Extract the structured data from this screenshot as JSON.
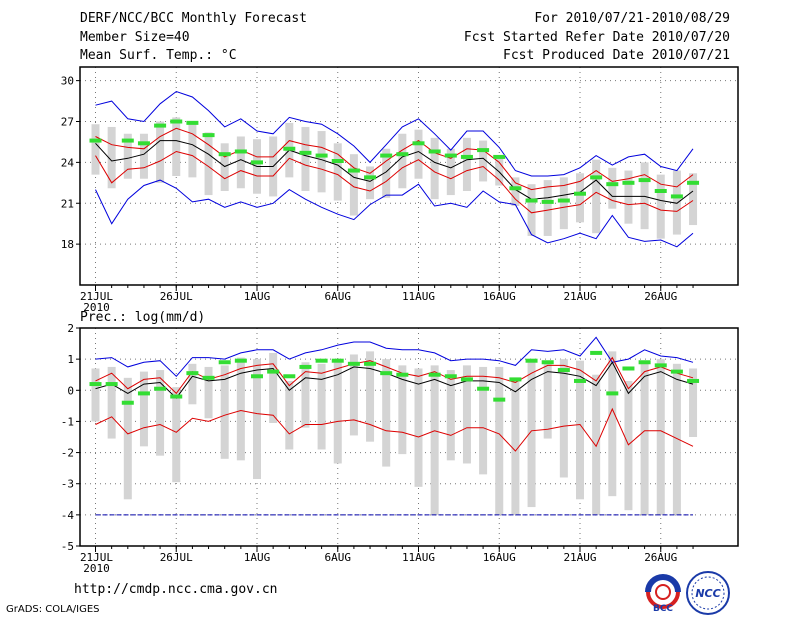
{
  "header": {
    "title": "DERF/NCC/BCC Monthly Forecast",
    "member_size": "Member Size=40",
    "variable": "Mean Surf. Temp.: °C",
    "period": "For 2010/07/21-2010/08/29",
    "fcst_started": "Fcst Started Refer Date 2010/07/20",
    "fcst_produced": "Fcst Produced Date 2010/07/21"
  },
  "footer": {
    "url": "http://cmdp.ncc.cma.gov.cn",
    "credit": "GrADS: COLA/IGES",
    "logo_left_text": "BCC",
    "logo_right_text": "NCC"
  },
  "colors": {
    "upper": "#0000dd",
    "lower": "#0000dd",
    "ens_high": "#dd0000",
    "mean": "#000000",
    "obs": "#33dd33",
    "bar": "#d4d4d4",
    "floor": "#0000aa"
  },
  "chart_data": [
    {
      "type": "line",
      "title": "Mean Surf. Temp.: °C",
      "x_tick_labels": [
        "21JUL",
        "26JUL",
        "1AUG",
        "6AUG",
        "11AUG",
        "16AUG",
        "21AUG",
        "26AUG"
      ],
      "x_tick_days": [
        1,
        6,
        11,
        16,
        21,
        26,
        31,
        36
      ],
      "x_sublabel": "2010",
      "ylim": [
        15,
        31
      ],
      "yticks": [
        18,
        21,
        24,
        27,
        30
      ],
      "series": [
        {
          "name": "upper envelope",
          "role": "upper",
          "values": [
            28.2,
            28.5,
            27.2,
            27.0,
            28.3,
            29.2,
            28.8,
            27.8,
            26.6,
            27.2,
            26.3,
            26.1,
            27.3,
            27.0,
            26.8,
            26.1,
            25.2,
            24.0,
            25.3,
            26.6,
            27.2,
            26.1,
            24.9,
            26.3,
            26.3,
            25.1,
            23.4,
            23.0,
            23.0,
            23.1,
            23.6,
            24.5,
            23.8,
            24.4,
            24.6,
            23.7,
            23.4,
            25.0
          ]
        },
        {
          "name": "ensemble high",
          "role": "ens_high",
          "values": [
            25.9,
            25.3,
            25.1,
            25.0,
            25.9,
            26.5,
            26.1,
            25.3,
            24.4,
            24.9,
            24.4,
            24.4,
            25.6,
            25.3,
            25.1,
            24.6,
            23.6,
            23.2,
            24.1,
            24.9,
            25.6,
            24.7,
            24.3,
            25.0,
            24.9,
            24.0,
            22.5,
            22.0,
            22.2,
            22.3,
            22.6,
            23.4,
            22.6,
            22.8,
            23.1,
            22.4,
            22.2,
            23.1
          ]
        },
        {
          "name": "ensemble mean",
          "role": "mean",
          "values": [
            25.4,
            24.1,
            24.3,
            24.6,
            25.6,
            25.6,
            25.3,
            24.6,
            23.7,
            24.2,
            23.7,
            23.7,
            24.9,
            24.5,
            24.2,
            23.8,
            22.9,
            22.6,
            23.3,
            24.4,
            24.8,
            24.0,
            23.6,
            24.2,
            24.3,
            23.3,
            22.0,
            21.3,
            21.4,
            21.6,
            21.8,
            22.7,
            21.5,
            21.5,
            21.5,
            21.2,
            21.0,
            21.9
          ]
        },
        {
          "name": "ensemble low",
          "role": "ens_low",
          "values": [
            24.5,
            22.5,
            23.5,
            23.6,
            24.1,
            24.8,
            24.5,
            23.7,
            22.8,
            23.4,
            23.0,
            23.0,
            24.3,
            23.8,
            23.5,
            23.1,
            22.2,
            21.9,
            22.6,
            23.6,
            24.2,
            23.3,
            22.8,
            23.4,
            23.7,
            22.7,
            21.3,
            20.3,
            20.5,
            20.7,
            20.9,
            21.8,
            21.2,
            20.9,
            21.0,
            20.5,
            20.4,
            21.2
          ]
        },
        {
          "name": "lower envelope",
          "role": "lower",
          "values": [
            22.0,
            19.5,
            21.3,
            22.3,
            22.7,
            22.1,
            21.1,
            21.3,
            20.7,
            21.1,
            20.7,
            21.0,
            22.0,
            21.3,
            20.7,
            20.2,
            19.8,
            20.9,
            21.6,
            21.6,
            22.4,
            20.8,
            21.0,
            20.7,
            21.9,
            21.1,
            20.9,
            18.7,
            18.1,
            18.4,
            18.8,
            18.4,
            20.1,
            18.5,
            18.2,
            18.3,
            17.8,
            18.8
          ]
        },
        {
          "name": "observed",
          "role": "obs",
          "values": [
            25.6,
            null,
            25.6,
            25.4,
            26.7,
            27.0,
            26.9,
            26.0,
            24.6,
            24.8,
            24.0,
            null,
            25.0,
            24.7,
            24.5,
            24.1,
            23.4,
            22.9,
            24.5,
            24.6,
            25.4,
            24.8,
            24.5,
            24.4,
            24.9,
            24.4,
            22.1,
            21.2,
            21.1,
            21.2,
            21.7,
            22.9,
            22.4,
            22.5,
            22.7,
            21.9,
            21.5,
            22.5
          ]
        }
      ],
      "box_top": [
        26.8,
        26.6,
        26.1,
        26.1,
        27.0,
        27.3,
        26.9,
        26.2,
        25.4,
        25.9,
        25.7,
        25.9,
        26.9,
        26.6,
        26.3,
        25.4,
        24.6,
        23.7,
        25.0,
        26.1,
        26.4,
        25.8,
        25.0,
        25.8,
        25.6,
        24.5,
        22.9,
        22.4,
        22.7,
        22.9,
        23.2,
        24.2,
        23.6,
        23.4,
        24.0,
        23.1,
        23.4,
        23.2
      ],
      "box_bottom": [
        23.1,
        22.1,
        22.8,
        22.8,
        22.5,
        23.0,
        22.9,
        21.6,
        21.9,
        22.1,
        21.7,
        21.5,
        22.9,
        21.9,
        21.8,
        21.2,
        20.1,
        21.3,
        21.4,
        22.1,
        22.8,
        21.3,
        21.6,
        21.9,
        22.6,
        22.3,
        20.8,
        18.6,
        18.6,
        19.1,
        19.6,
        18.8,
        20.6,
        19.5,
        19.1,
        18.4,
        18.7,
        19.4
      ]
    },
    {
      "type": "line",
      "title": "Prec.: log(mm/d)",
      "x_tick_labels": [
        "21JUL",
        "26JUL",
        "1AUG",
        "6AUG",
        "11AUG",
        "16AUG",
        "21AUG",
        "26AUG"
      ],
      "x_tick_days": [
        1,
        6,
        11,
        16,
        21,
        26,
        31,
        36
      ],
      "x_sublabel": "2010",
      "ylim": [
        -5,
        2
      ],
      "yticks": [
        -5,
        -4,
        -3,
        -2,
        -1,
        0,
        1,
        2
      ],
      "series": [
        {
          "name": "upper envelope",
          "role": "upper",
          "values": [
            1.0,
            1.05,
            0.75,
            0.9,
            0.95,
            0.45,
            1.05,
            1.05,
            1.0,
            1.2,
            1.3,
            1.3,
            1.0,
            1.2,
            1.3,
            1.45,
            1.55,
            1.55,
            1.35,
            1.3,
            1.3,
            1.2,
            0.95,
            1.0,
            1.0,
            0.95,
            0.8,
            1.3,
            1.25,
            1.3,
            1.1,
            1.7,
            0.9,
            1.0,
            1.3,
            1.1,
            1.05,
            0.9
          ]
        },
        {
          "name": "ensemble high",
          "role": "ens_high",
          "values": [
            0.3,
            0.55,
            0.05,
            0.35,
            0.4,
            -0.1,
            0.6,
            0.35,
            0.5,
            0.7,
            0.8,
            0.85,
            0.15,
            0.6,
            0.55,
            0.7,
            0.85,
            0.95,
            0.75,
            0.55,
            0.45,
            0.6,
            0.35,
            0.45,
            0.45,
            0.4,
            0.25,
            0.55,
            0.8,
            0.8,
            0.65,
            0.3,
            1.05,
            0.05,
            0.6,
            0.75,
            0.55,
            0.4
          ]
        },
        {
          "name": "ensemble mean",
          "role": "mean",
          "values": [
            0.05,
            0.2,
            -0.1,
            0.2,
            0.25,
            -0.25,
            0.45,
            0.3,
            0.35,
            0.55,
            0.65,
            0.7,
            0.0,
            0.4,
            0.35,
            0.5,
            0.75,
            0.7,
            0.55,
            0.35,
            0.2,
            0.35,
            0.15,
            0.3,
            0.3,
            0.25,
            -0.05,
            0.35,
            0.6,
            0.55,
            0.45,
            0.15,
            0.9,
            -0.1,
            0.45,
            0.6,
            0.35,
            0.2
          ]
        },
        {
          "name": "ensemble low",
          "role": "ens_low",
          "values": [
            -1.1,
            -0.85,
            -1.4,
            -1.2,
            -1.1,
            -1.35,
            -0.9,
            -1.0,
            -0.8,
            -0.65,
            -0.75,
            -0.8,
            -1.4,
            -1.1,
            -1.1,
            -1.0,
            -0.95,
            -1.1,
            -1.3,
            -1.35,
            -1.5,
            -1.3,
            -1.45,
            -1.2,
            -1.2,
            -1.4,
            -1.95,
            -1.3,
            -1.25,
            -1.15,
            -1.1,
            -1.8,
            -0.6,
            -1.75,
            -1.3,
            -1.3,
            -1.55,
            -1.8
          ]
        },
        {
          "name": "floor",
          "role": "floor",
          "values": [
            -4,
            -4,
            -4,
            -4,
            -4,
            -4,
            -4,
            -4,
            -4,
            -4,
            -4,
            -4,
            -4,
            -4,
            -4,
            -4,
            -4,
            -4,
            -4,
            -4,
            -4,
            -4,
            -4,
            -4,
            -4,
            -4,
            -4,
            -4,
            -4,
            -4,
            -4,
            -4,
            -4,
            -4,
            -4,
            -4,
            -4,
            -4
          ]
        },
        {
          "name": "observed",
          "role": "obs",
          "values": [
            0.2,
            0.2,
            -0.4,
            -0.1,
            0.05,
            -0.2,
            0.55,
            0.4,
            0.9,
            0.95,
            0.45,
            0.6,
            0.45,
            0.75,
            0.95,
            0.95,
            0.85,
            0.85,
            0.55,
            0.5,
            null,
            0.5,
            0.45,
            0.35,
            0.05,
            -0.3,
            0.35,
            0.95,
            0.9,
            0.65,
            0.3,
            1.2,
            -0.1,
            0.7,
            0.9,
            0.8,
            0.6,
            0.3
          ]
        }
      ],
      "box_top": [
        0.7,
        0.75,
        0.4,
        0.6,
        0.65,
        0.1,
        0.85,
        0.75,
        0.8,
        1.05,
        1.0,
        1.2,
        0.3,
        0.9,
        0.85,
        1.0,
        1.15,
        1.25,
        1.0,
        0.8,
        0.7,
        0.8,
        0.65,
        0.8,
        0.75,
        0.75,
        0.35,
        0.95,
        0.95,
        1.0,
        0.95,
        0.5,
        1.25,
        0.3,
        0.85,
        1.0,
        0.85,
        0.7
      ],
      "box_bottom": [
        -1.0,
        -1.55,
        -3.5,
        -1.8,
        -2.1,
        -2.95,
        -0.45,
        -0.9,
        -2.2,
        -2.25,
        -2.85,
        -1.05,
        -1.9,
        -1.2,
        -1.9,
        -2.35,
        -1.45,
        -1.65,
        -2.45,
        -2.05,
        -3.1,
        -4.0,
        -2.25,
        -2.35,
        -2.7,
        -4.0,
        -4.0,
        -3.75,
        -1.55,
        -2.8,
        -3.5,
        -4.0,
        -3.4,
        -3.85,
        -4.0,
        -4.0,
        -4.0,
        -1.5
      ]
    }
  ]
}
